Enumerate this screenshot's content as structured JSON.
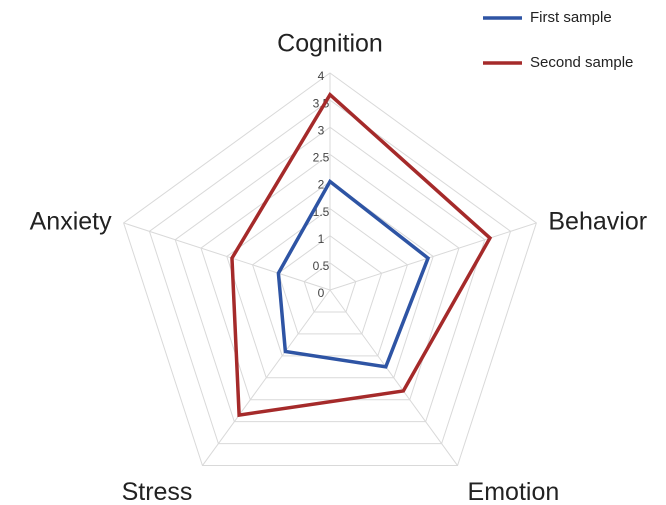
{
  "chart_data": {
    "type": "radar",
    "categories": [
      "Cognition",
      "Behavior",
      "Emotion",
      "Stress",
      "Anxiety"
    ],
    "series": [
      {
        "name": "First sample",
        "color": "#2e54a4",
        "values": [
          2,
          1.9,
          1.75,
          1.4,
          1
        ]
      },
      {
        "name": "Second sample",
        "color": "#a52a2a",
        "values": [
          3.6,
          3.1,
          2.3,
          2.85,
          1.9
        ]
      }
    ],
    "ylim": [
      0,
      4
    ],
    "yticks": [
      0,
      0.5,
      1,
      1.5,
      2,
      2.5,
      3,
      3.5,
      4
    ],
    "grid": true,
    "legend": "top-right"
  }
}
